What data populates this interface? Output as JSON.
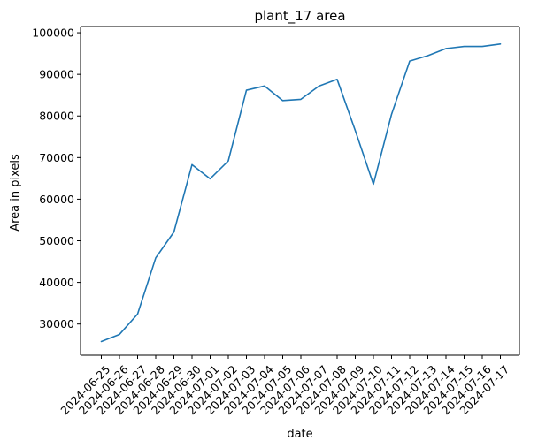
{
  "chart_data": {
    "type": "line",
    "title": "plant_17 area",
    "xlabel": "date",
    "ylabel": "Area in pixels",
    "x": [
      "2024-06-25",
      "2024-06-26",
      "2024-06-27",
      "2024-06-28",
      "2024-06-29",
      "2024-06-30",
      "2024-07-01",
      "2024-07-02",
      "2024-07-03",
      "2024-07-04",
      "2024-07-05",
      "2024-07-06",
      "2024-07-07",
      "2024-07-08",
      "2024-07-09",
      "2024-07-10",
      "2024-07-11",
      "2024-07-12",
      "2024-07-13",
      "2024-07-14",
      "2024-07-15",
      "2024-07-16",
      "2024-07-17"
    ],
    "series": [
      {
        "values": [
          25800,
          27500,
          32400,
          45900,
          52100,
          68300,
          64900,
          69200,
          86200,
          87200,
          83700,
          84000,
          87200,
          88800,
          76500,
          63600,
          80400,
          93200,
          94500,
          96200,
          96700,
          96700,
          97300
        ]
      }
    ],
    "ylim": [
      22500,
      101500
    ],
    "yticks": [
      30000,
      40000,
      50000,
      60000,
      70000,
      80000,
      90000,
      100000
    ],
    "grid": false,
    "colors": {
      "line": "#1f77b4",
      "axis": "#000000"
    }
  }
}
